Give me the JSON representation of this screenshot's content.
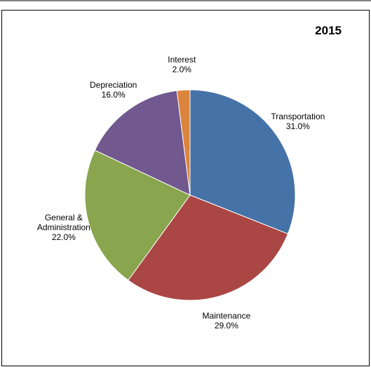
{
  "chart_data": {
    "type": "pie",
    "title": "2015",
    "categories": [
      "Transportation",
      "Maintenance",
      "General & Administration",
      "Depreciation",
      "Interest"
    ],
    "values": [
      31,
      29,
      22,
      16,
      2
    ],
    "value_labels": [
      "31.0%",
      "29.0%",
      "22.0%",
      "16.0%",
      "2.0%"
    ],
    "colors": [
      "#4572a7",
      "#aa4643",
      "#89a54e",
      "#71588f",
      "#db843d"
    ]
  }
}
